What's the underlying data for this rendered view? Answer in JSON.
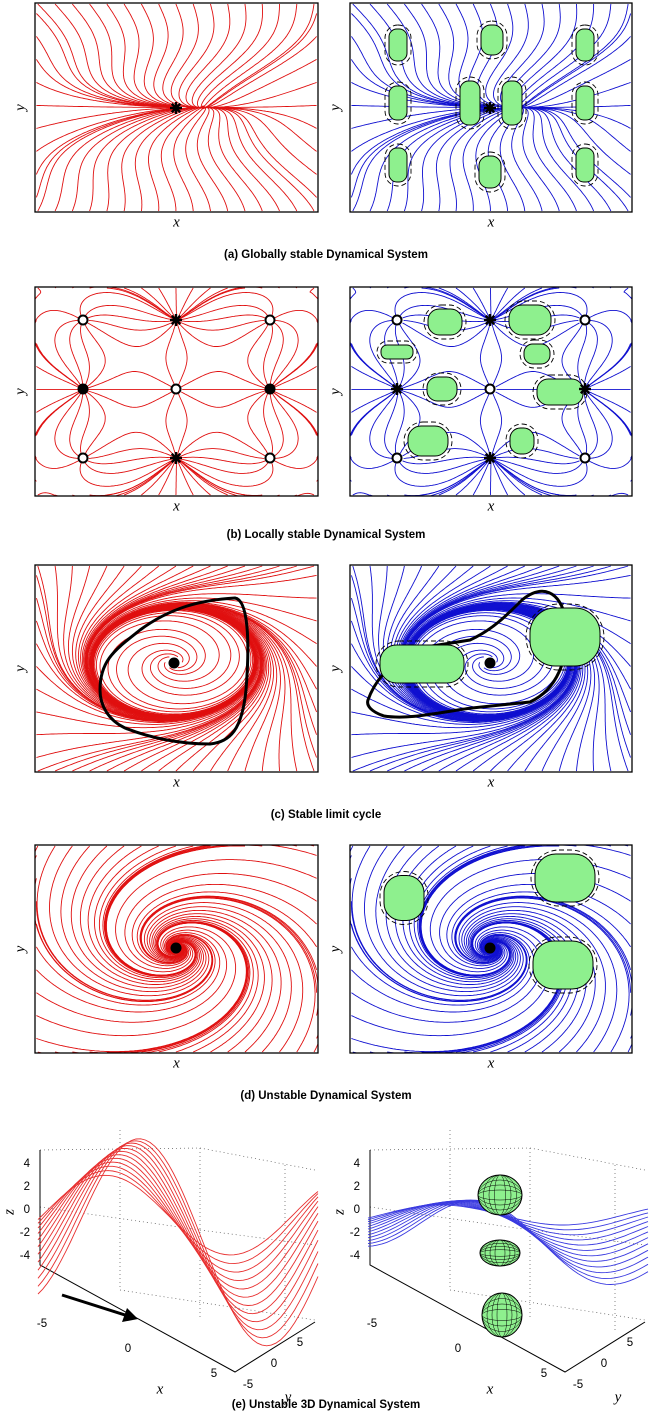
{
  "figure": {
    "rows": [
      {
        "caption": "(a) Globally stable Dynamical System",
        "left": {
          "xlabel": "x",
          "ylabel": "y"
        },
        "right": {
          "xlabel": "x",
          "ylabel": "y"
        }
      },
      {
        "caption": "(b) Locally stable Dynamical System",
        "left": {
          "xlabel": "x",
          "ylabel": "y"
        },
        "right": {
          "xlabel": "x",
          "ylabel": "y"
        }
      },
      {
        "caption": "(c) Stable limit cycle",
        "left": {
          "xlabel": "x",
          "ylabel": "y"
        },
        "right": {
          "xlabel": "x",
          "ylabel": "y"
        }
      },
      {
        "caption": "(d) Unstable Dynamical System",
        "left": {
          "xlabel": "x",
          "ylabel": "y"
        },
        "right": {
          "xlabel": "x",
          "ylabel": "y"
        }
      }
    ],
    "row3d": {
      "caption": "(e) Unstable 3D Dynamical System",
      "left": {
        "xlabel": "x",
        "ylabel": "y",
        "zlabel": "z",
        "zticks": [
          4,
          2,
          0,
          -2,
          -4
        ],
        "xticks": [
          -5,
          0,
          5
        ],
        "yticks": [
          -5,
          0,
          5
        ]
      },
      "right": {
        "xlabel": "x",
        "ylabel": "y",
        "zlabel": "z",
        "zticks": [
          4,
          2,
          0,
          -2,
          -4
        ],
        "xticks": [
          -5,
          0,
          5
        ],
        "yticks": [
          -5,
          0,
          5
        ]
      }
    }
  }
}
